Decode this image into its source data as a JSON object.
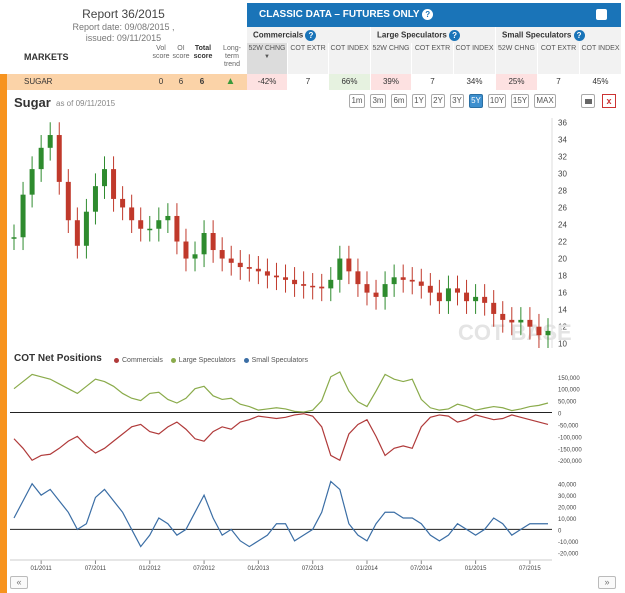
{
  "report": {
    "title": "Report 36/2015",
    "date_line": "Report date: 09/08/2015 ,",
    "issued_line": "issued: 09/11/2015"
  },
  "markets_label": "MARKETS",
  "summary_cols": {
    "vol": "Vol score",
    "oi": "OI score",
    "total": "Total score",
    "trend": "Long-term trend"
  },
  "banner": {
    "title": "CLASSIC DATA – FUTURES ONLY"
  },
  "groups": [
    {
      "name": "Commercials",
      "cols": [
        "52W CHNG",
        "COT EXTR",
        "COT INDEX"
      ]
    },
    {
      "name": "Large Speculators",
      "cols": [
        "52W CHNG",
        "COT EXTR",
        "COT INDEX"
      ]
    },
    {
      "name": "Small Speculators",
      "cols": [
        "52W CHNG",
        "COT EXTR",
        "COT INDEX"
      ]
    }
  ],
  "row": {
    "market": "SUGAR",
    "vol": "0",
    "oi": "6",
    "total": "6",
    "trend_icon": "up-arrow-icon",
    "comm": [
      "-42%",
      "7",
      "66%"
    ],
    "large": [
      "39%",
      "7",
      "34%"
    ],
    "small": [
      "25%",
      "7",
      "45%"
    ]
  },
  "chart_header": {
    "title": "Sugar",
    "as_of": "as of 09/11/2015"
  },
  "ranges": [
    "1m",
    "3m",
    "6m",
    "1Y",
    "2Y",
    "3Y",
    "5Y",
    "10Y",
    "15Y",
    "MAX"
  ],
  "active_range": "5Y",
  "close_label": "x",
  "cot_title": "COT Net Positions",
  "legend": [
    {
      "name": "Commercials",
      "color": "#b03a3a"
    },
    {
      "name": "Large Speculators",
      "color": "#8aab4b"
    },
    {
      "name": "Small Speculators",
      "color": "#3b6ea5"
    }
  ],
  "nav": {
    "prev": "«",
    "next": "»"
  },
  "colors": {
    "accent": "#1a74b8",
    "strip": "#f7931e",
    "row_bg": "#fbd3a8"
  },
  "chart_data": [
    {
      "type": "candlestick",
      "title": "Sugar",
      "x_ticks": [
        "01/2011",
        "07/2011",
        "01/2012",
        "07/2012",
        "01/2013",
        "07/2013",
        "01/2014",
        "07/2014",
        "01/2015",
        "07/2015"
      ],
      "y_ticks": [
        10,
        12,
        14,
        16,
        18,
        20,
        22,
        24,
        26,
        28,
        30,
        32,
        34,
        36
      ],
      "ylim": [
        9.5,
        36.5
      ],
      "x": [
        "2010-10",
        "2010-11",
        "2010-12",
        "2011-01",
        "2011-02",
        "2011-03",
        "2011-04",
        "2011-05",
        "2011-06",
        "2011-07",
        "2011-08",
        "2011-09",
        "2011-10",
        "2011-11",
        "2011-12",
        "2012-01",
        "2012-02",
        "2012-03",
        "2012-04",
        "2012-05",
        "2012-06",
        "2012-07",
        "2012-08",
        "2012-09",
        "2012-10",
        "2012-11",
        "2012-12",
        "2013-01",
        "2013-02",
        "2013-03",
        "2013-04",
        "2013-05",
        "2013-06",
        "2013-07",
        "2013-08",
        "2013-09",
        "2013-10",
        "2013-11",
        "2013-12",
        "2014-01",
        "2014-02",
        "2014-03",
        "2014-04",
        "2014-05",
        "2014-06",
        "2014-07",
        "2014-08",
        "2014-09",
        "2014-10",
        "2014-11",
        "2014-12",
        "2015-01",
        "2015-02",
        "2015-03",
        "2015-04",
        "2015-05",
        "2015-06",
        "2015-07",
        "2015-08",
        "2015-09"
      ],
      "price": [
        22.5,
        27.5,
        30.5,
        33.0,
        34.5,
        29.0,
        24.5,
        21.5,
        25.5,
        28.5,
        30.5,
        27.0,
        26.0,
        24.5,
        23.5,
        23.5,
        24.5,
        25.0,
        22.0,
        20.0,
        20.5,
        23.0,
        21.0,
        20.0,
        19.5,
        19.0,
        18.8,
        18.5,
        18.0,
        17.8,
        17.5,
        17.0,
        16.8,
        16.7,
        16.5,
        17.5,
        20.0,
        18.5,
        17.0,
        16.0,
        15.5,
        17.0,
        17.8,
        17.5,
        17.3,
        16.8,
        16.0,
        15.0,
        16.5,
        16.0,
        15.0,
        15.5,
        14.8,
        13.5,
        12.8,
        12.5,
        12.8,
        12.0,
        11.0,
        11.5
      ],
      "wick": 1.5,
      "bullish_color": "#2e8b2e",
      "bearish_color": "#c0392b",
      "watermark": "COT BASE"
    },
    {
      "type": "line",
      "title": "COT Net Positions",
      "y_ticks": [
        -200000,
        -150000,
        -100000,
        -50000,
        0,
        50000,
        100000,
        150000
      ],
      "ylim": [
        -220000,
        170000
      ],
      "series": [
        {
          "name": "Commercials",
          "values": [
            -110000,
            -150000,
            -200000,
            -180000,
            -175000,
            -150000,
            -120000,
            -100000,
            -140000,
            -170000,
            -150000,
            -120000,
            -90000,
            -60000,
            -50000,
            -80000,
            -90000,
            -60000,
            -40000,
            -70000,
            -110000,
            -120000,
            -80000,
            -60000,
            -70000,
            -40000,
            -30000,
            -15000,
            -20000,
            -25000,
            -20000,
            -10000,
            -5000,
            -15000,
            -60000,
            -180000,
            -200000,
            -90000,
            -50000,
            -30000,
            -100000,
            -180000,
            -150000,
            -140000,
            -150000,
            -60000,
            -20000,
            -10000,
            -15000,
            -40000,
            -30000,
            -10000,
            -20000,
            -30000,
            -25000,
            -10000,
            -20000,
            -30000,
            -40000,
            -50000
          ]
        },
        {
          "name": "Large Speculators",
          "values": [
            100000,
            130000,
            160000,
            150000,
            140000,
            120000,
            100000,
            80000,
            110000,
            140000,
            130000,
            110000,
            80000,
            60000,
            50000,
            80000,
            85000,
            55000,
            40000,
            60000,
            100000,
            110000,
            70000,
            55000,
            60000,
            35000,
            25000,
            10000,
            15000,
            20000,
            15000,
            5000,
            2000,
            10000,
            50000,
            150000,
            170000,
            90000,
            45000,
            25000,
            90000,
            160000,
            140000,
            130000,
            140000,
            55000,
            20000,
            10000,
            15000,
            35000,
            25000,
            10000,
            18000,
            25000,
            20000,
            8000,
            15000,
            25000,
            30000,
            40000
          ]
        },
        {
          "name": "Small Speculators",
          "values": [
            10000,
            25000,
            40000,
            30000,
            35000,
            25000,
            15000,
            0,
            5000,
            28000,
            35000,
            25000,
            15000,
            0,
            -15000,
            -5000,
            10000,
            5000,
            -5000,
            0,
            15000,
            30000,
            10000,
            -5000,
            0,
            -10000,
            -15000,
            -10000,
            -5000,
            5000,
            5000,
            -10000,
            -5000,
            0,
            15000,
            42000,
            35000,
            5000,
            -5000,
            -10000,
            5000,
            15000,
            15000,
            10000,
            10000,
            5000,
            -5000,
            -10000,
            -5000,
            5000,
            0,
            -5000,
            0,
            10000,
            5000,
            -5000,
            0,
            5000,
            5000,
            5000
          ]
        }
      ]
    }
  ]
}
